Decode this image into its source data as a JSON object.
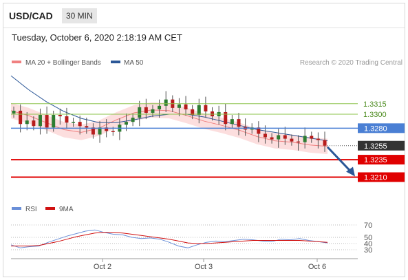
{
  "header": {
    "pair": "USD/CAD",
    "timeframe": "30 MIN",
    "timestamp": "Tuesday, October 6, 2020 2:18:19 AM CET"
  },
  "legend": {
    "items": [
      {
        "label": "MA 20 + Bollinger Bands",
        "color": "#f08080"
      },
      {
        "label": "MA 50",
        "color": "#2b5797"
      }
    ],
    "credit": "Research © 2020 Trading Central"
  },
  "colors": {
    "candle_up": "#2e7d32",
    "candle_down": "#b71c1c",
    "bollinger_band": "#fbd6d6",
    "ma20": "#f08080",
    "ma50": "#2b5797",
    "resistance": "#8bc34a",
    "pivot": "#4a7fd4",
    "support": "#e00000",
    "price_tag": "#333333",
    "arrow": "#2b5797",
    "rsi": "#6a8fd8",
    "rsi_ma": "#d01010"
  },
  "chart_data": [
    {
      "type": "line",
      "title": "",
      "x_ticks": [
        "Oct 2",
        "Oct 3",
        "Oct 6"
      ],
      "ylim": [
        1.318,
        1.336
      ],
      "price_levels": [
        {
          "label": "1.3315",
          "value": 1.3315,
          "kind": "resistance"
        },
        {
          "label": "1.3300",
          "value": 1.33,
          "kind": "resistance"
        },
        {
          "label": "1.3280",
          "value": 1.328,
          "kind": "pivot"
        },
        {
          "label": "1.3255",
          "value": 1.3255,
          "kind": "last"
        },
        {
          "label": "1.3235",
          "value": 1.3235,
          "kind": "support"
        },
        {
          "label": "1.3210",
          "value": 1.321,
          "kind": "support"
        }
      ],
      "series": [
        {
          "name": "MA 20 + Bollinger Bands",
          "values": [
            1.3305,
            1.3298,
            1.3288,
            1.3278,
            1.3274,
            1.328,
            1.3292,
            1.3302,
            1.3306,
            1.3305,
            1.3298,
            1.329,
            1.3284,
            1.3277,
            1.3268,
            1.3262,
            1.326,
            1.3256,
            1.3254
          ]
        },
        {
          "name": "MA 50",
          "values": [
            1.3355,
            1.3335,
            1.3318,
            1.3304,
            1.3294,
            1.3288,
            1.3288,
            1.3292,
            1.3297,
            1.33,
            1.33,
            1.3296,
            1.329,
            1.3284,
            1.3278,
            1.3274,
            1.327,
            1.3266,
            1.3262
          ]
        }
      ],
      "closes": [
        1.3305,
        1.3286,
        1.3291,
        1.3283,
        1.3299,
        1.3281,
        1.3299,
        1.3297,
        1.3288,
        1.3289,
        1.3283,
        1.3281,
        1.3271,
        1.3281,
        1.3276,
        1.3275,
        1.3285,
        1.3289,
        1.3295,
        1.331,
        1.3302,
        1.3307,
        1.3312,
        1.3321,
        1.3309,
        1.3314,
        1.3307,
        1.3299,
        1.3313,
        1.3304,
        1.3297,
        1.3303,
        1.3286,
        1.3293,
        1.3282,
        1.3278,
        1.3281,
        1.3272,
        1.3267,
        1.3264,
        1.327,
        1.3265,
        1.3261,
        1.326,
        1.3269,
        1.3265,
        1.3263,
        1.3255
      ]
    },
    {
      "type": "line",
      "title": "",
      "legend": [
        "RSI",
        "9MA"
      ],
      "y_ticks": [
        70,
        50,
        40,
        30
      ],
      "ylim": [
        20,
        80
      ],
      "series": [
        {
          "name": "RSI",
          "values": [
            38,
            33,
            35,
            36,
            42,
            47,
            52,
            56,
            60,
            62,
            58,
            55,
            54,
            50,
            48,
            49,
            47,
            42,
            36,
            33,
            38,
            42,
            44,
            43,
            45,
            47,
            46,
            44,
            43,
            47,
            46,
            48,
            45,
            43,
            41
          ]
        },
        {
          "name": "9MA",
          "values": [
            36,
            36,
            36,
            37,
            40,
            43,
            47,
            51,
            54,
            57,
            58,
            58,
            57,
            55,
            53,
            51,
            49,
            47,
            44,
            41,
            40,
            40,
            41,
            42,
            43,
            44,
            45,
            45,
            45,
            45,
            45,
            45,
            44,
            43,
            42
          ]
        }
      ]
    }
  ]
}
